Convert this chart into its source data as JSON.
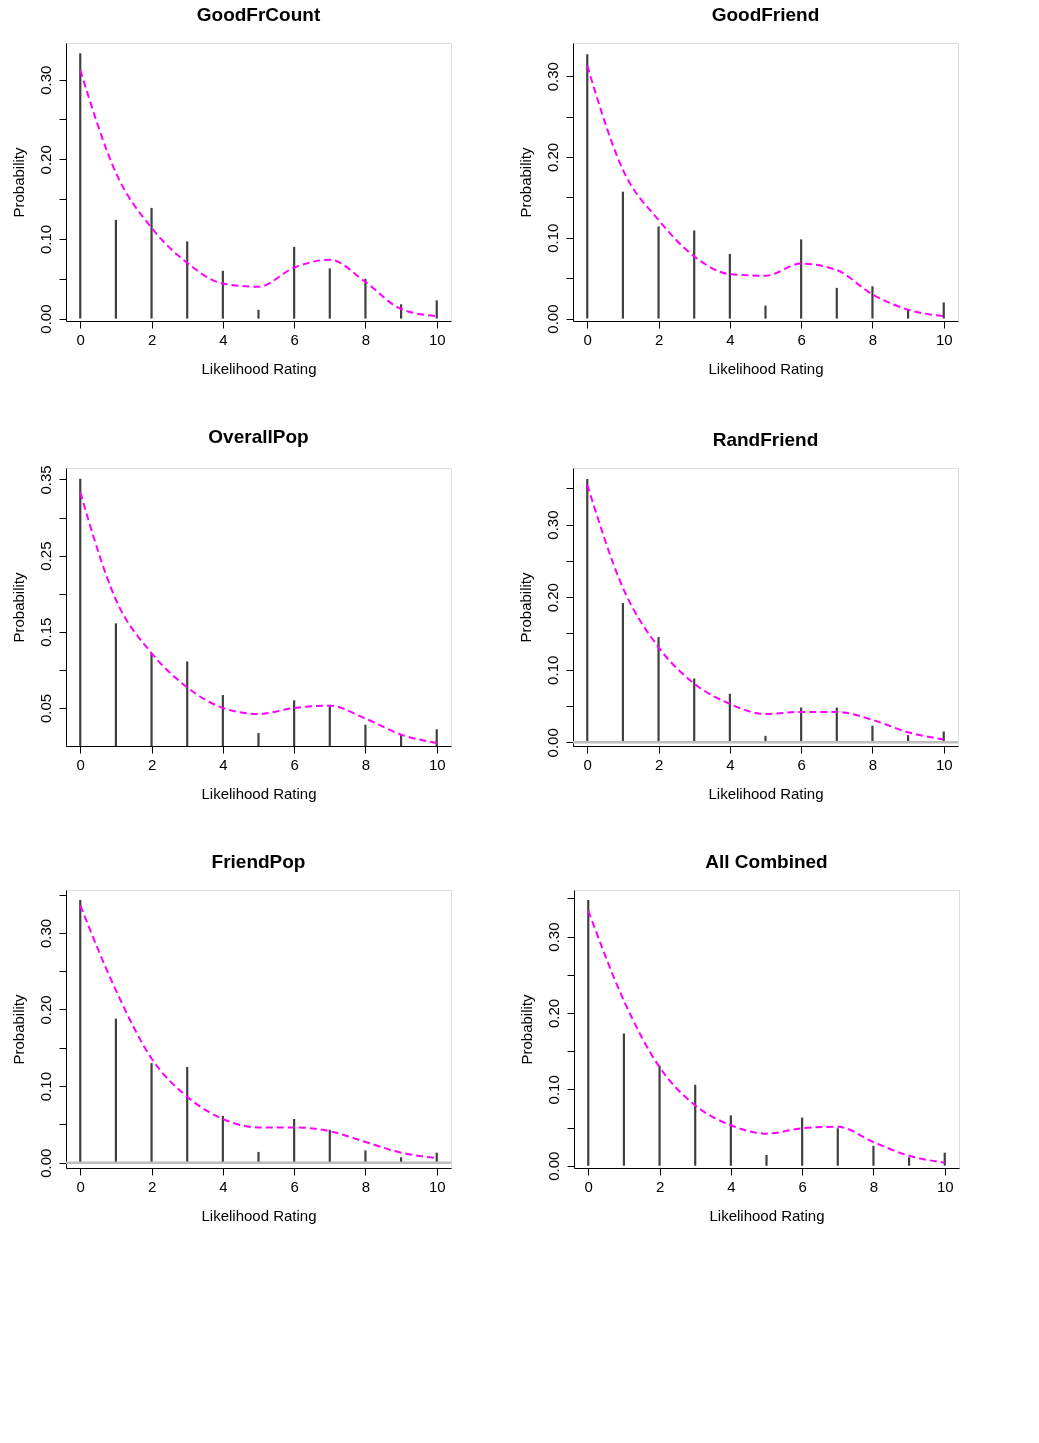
{
  "chart_data": [
    {
      "type": "bar",
      "title": "GoodFrCount",
      "xlabel": "Likelihood Rating",
      "ylabel": "Probability",
      "x": [
        0,
        1,
        2,
        3,
        4,
        5,
        6,
        7,
        8,
        9,
        10
      ],
      "xlim": [
        -0.4,
        10.4
      ],
      "xticks": [
        0,
        2,
        4,
        6,
        8,
        10
      ],
      "ylim": [
        -0.003,
        0.346
      ],
      "yticks": [
        {
          "value": 0,
          "label": "0.00"
        },
        {
          "value": 0.05,
          "label": null
        },
        {
          "value": 0.1,
          "label": "0.10"
        },
        {
          "value": 0.15,
          "label": null
        },
        {
          "value": 0.2,
          "label": "0.20"
        },
        {
          "value": 0.25,
          "label": null
        },
        {
          "value": 0.3,
          "label": "0.30"
        }
      ],
      "grid": false,
      "legend": false,
      "series": [
        {
          "color": "#404040",
          "values": [
            0.333,
            0.124,
            0.139,
            0.097,
            0.06,
            0.011,
            0.09,
            0.063,
            0.05,
            0.018,
            0.023
          ]
        },
        {
          "type": "line",
          "color": "#ff00ff",
          "line_style": "dashed",
          "marker": "none",
          "values": [
            0.312,
            0.183,
            0.114,
            0.07,
            0.044,
            0.04,
            0.064,
            0.074,
            0.046,
            0.012,
            0.003
          ]
        }
      ]
    },
    {
      "type": "bar",
      "title": "GoodFriend",
      "xlabel": "Likelihood Rating",
      "ylabel": "Probability",
      "x": [
        0,
        1,
        2,
        3,
        4,
        5,
        6,
        7,
        8,
        9,
        10
      ],
      "xlim": [
        -0.4,
        10.4
      ],
      "xticks": [
        0,
        2,
        4,
        6,
        8,
        10
      ],
      "ylim": [
        -0.003,
        0.341
      ],
      "yticks": [
        {
          "value": 0,
          "label": "0.00"
        },
        {
          "value": 0.05,
          "label": null
        },
        {
          "value": 0.1,
          "label": "0.10"
        },
        {
          "value": 0.15,
          "label": null
        },
        {
          "value": 0.2,
          "label": "0.20"
        },
        {
          "value": 0.25,
          "label": null
        },
        {
          "value": 0.3,
          "label": "0.30"
        }
      ],
      "grid": false,
      "legend": false,
      "series": [
        {
          "color": "#404040",
          "values": [
            0.327,
            0.157,
            0.114,
            0.109,
            0.08,
            0.016,
            0.098,
            0.038,
            0.04,
            0.011,
            0.02
          ]
        },
        {
          "type": "line",
          "color": "#ff00ff",
          "line_style": "dashed",
          "marker": "none",
          "values": [
            0.313,
            0.184,
            0.122,
            0.077,
            0.055,
            0.053,
            0.068,
            0.06,
            0.03,
            0.011,
            0.003
          ]
        }
      ]
    },
    {
      "type": "bar",
      "title": "OverallPop",
      "xlabel": "Likelihood Rating",
      "ylabel": "Probability",
      "x": [
        0,
        1,
        2,
        3,
        4,
        5,
        6,
        7,
        8,
        9,
        10
      ],
      "xlim": [
        -0.4,
        10.4
      ],
      "xticks": [
        0,
        2,
        4,
        6,
        8,
        10
      ],
      "ylim": [
        0,
        0.365
      ],
      "yticks": [
        {
          "value": 0.05,
          "label": "0.05"
        },
        {
          "value": 0.1,
          "label": null
        },
        {
          "value": 0.15,
          "label": "0.15"
        },
        {
          "value": 0.2,
          "label": null
        },
        {
          "value": 0.25,
          "label": "0.25"
        },
        {
          "value": 0.3,
          "label": null
        },
        {
          "value": 0.35,
          "label": "0.35"
        }
      ],
      "grid": false,
      "legend": false,
      "series": [
        {
          "color": "#404040",
          "values": [
            0.351,
            0.161,
            0.122,
            0.111,
            0.067,
            0.017,
            0.06,
            0.054,
            0.028,
            0.015,
            0.022
          ]
        },
        {
          "type": "line",
          "color": "#ff00ff",
          "line_style": "dashed",
          "marker": "none",
          "values": [
            0.333,
            0.192,
            0.122,
            0.077,
            0.05,
            0.042,
            0.05,
            0.053,
            0.036,
            0.015,
            0.004
          ]
        }
      ]
    },
    {
      "type": "bar",
      "title": "RandFriend",
      "xlabel": "Likelihood Rating",
      "ylabel": "Probability",
      "x": [
        0,
        1,
        2,
        3,
        4,
        5,
        6,
        7,
        8,
        9,
        10
      ],
      "xlim": [
        -0.4,
        10.4
      ],
      "xticks": [
        0,
        2,
        4,
        6,
        8,
        10
      ],
      "ylim": [
        -0.005,
        0.378
      ],
      "yticks": [
        {
          "value": 0,
          "label": "0.00"
        },
        {
          "value": 0.05,
          "label": null
        },
        {
          "value": 0.1,
          "label": "0.10"
        },
        {
          "value": 0.15,
          "label": null
        },
        {
          "value": 0.2,
          "label": "0.20"
        },
        {
          "value": 0.25,
          "label": null
        },
        {
          "value": 0.3,
          "label": "0.30"
        },
        {
          "value": 0.35,
          "label": null
        }
      ],
      "grid": false,
      "legend": false,
      "ref_lines": [
        {
          "axis": "y",
          "value": 0,
          "color": "#bebebe"
        }
      ],
      "series": [
        {
          "color": "#404040",
          "values": [
            0.363,
            0.192,
            0.145,
            0.088,
            0.067,
            0.009,
            0.048,
            0.048,
            0.023,
            0.01,
            0.015
          ]
        },
        {
          "type": "line",
          "color": "#ff00ff",
          "line_style": "dashed",
          "marker": "none",
          "values": [
            0.355,
            0.213,
            0.131,
            0.081,
            0.053,
            0.039,
            0.042,
            0.042,
            0.031,
            0.014,
            0.004
          ]
        }
      ]
    },
    {
      "type": "bar",
      "title": "FriendPop",
      "xlabel": "Likelihood Rating",
      "ylabel": "Probability",
      "x": [
        0,
        1,
        2,
        3,
        4,
        5,
        6,
        7,
        8,
        9,
        10
      ],
      "xlim": [
        -0.4,
        10.4
      ],
      "xticks": [
        0,
        2,
        4,
        6,
        8,
        10
      ],
      "ylim": [
        -0.007,
        0.356
      ],
      "yticks": [
        {
          "value": 0,
          "label": "0.00"
        },
        {
          "value": 0.05,
          "label": null
        },
        {
          "value": 0.1,
          "label": "0.10"
        },
        {
          "value": 0.15,
          "label": null
        },
        {
          "value": 0.2,
          "label": "0.20"
        },
        {
          "value": 0.25,
          "label": null
        },
        {
          "value": 0.3,
          "label": "0.30"
        },
        {
          "value": 0.35,
          "label": null
        }
      ],
      "grid": false,
      "legend": false,
      "ref_lines": [
        {
          "axis": "y",
          "value": 0,
          "color": "#bebebe"
        }
      ],
      "series": [
        {
          "color": "#404040",
          "values": [
            0.343,
            0.188,
            0.13,
            0.125,
            0.061,
            0.014,
            0.057,
            0.043,
            0.016,
            0.007,
            0.013
          ]
        },
        {
          "type": "line",
          "color": "#ff00ff",
          "line_style": "dashed",
          "marker": "none",
          "values": [
            0.336,
            0.225,
            0.136,
            0.086,
            0.057,
            0.046,
            0.046,
            0.041,
            0.027,
            0.013,
            0.006
          ]
        }
      ]
    },
    {
      "type": "bar",
      "title": "All Combined",
      "xlabel": "Likelihood Rating",
      "ylabel": "Probability",
      "x": [
        0,
        1,
        2,
        3,
        4,
        5,
        6,
        7,
        8,
        9,
        10
      ],
      "xlim": [
        -0.4,
        10.4
      ],
      "xticks": [
        0,
        2,
        4,
        6,
        8,
        10
      ],
      "ylim": [
        -0.003,
        0.361
      ],
      "yticks": [
        {
          "value": 0,
          "label": "0.00"
        },
        {
          "value": 0.05,
          "label": null
        },
        {
          "value": 0.1,
          "label": "0.10"
        },
        {
          "value": 0.15,
          "label": null
        },
        {
          "value": 0.2,
          "label": "0.20"
        },
        {
          "value": 0.25,
          "label": null
        },
        {
          "value": 0.3,
          "label": "0.30"
        },
        {
          "value": 0.35,
          "label": null
        }
      ],
      "grid": false,
      "legend": false,
      "series": [
        {
          "color": "#404040",
          "values": [
            0.348,
            0.173,
            0.131,
            0.106,
            0.066,
            0.014,
            0.063,
            0.049,
            0.026,
            0.011,
            0.017
          ]
        },
        {
          "type": "line",
          "color": "#ff00ff",
          "line_style": "dashed",
          "marker": "none",
          "values": [
            0.334,
            0.216,
            0.129,
            0.079,
            0.053,
            0.042,
            0.049,
            0.051,
            0.031,
            0.013,
            0.004
          ]
        }
      ]
    }
  ]
}
